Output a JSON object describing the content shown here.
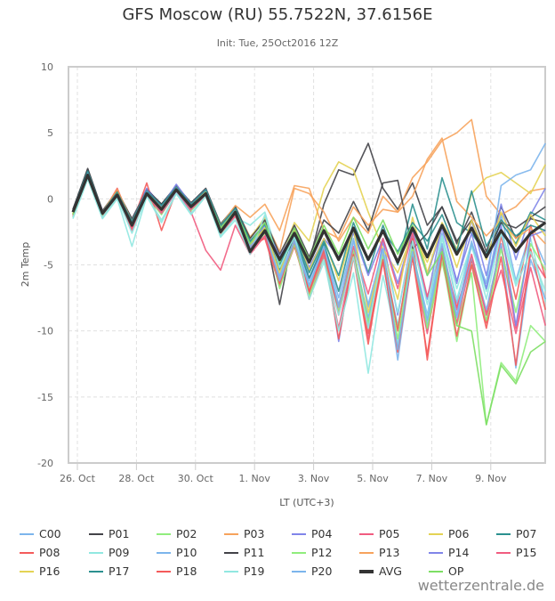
{
  "title": "GFS Moscow (RU) 55.7522N, 37.6156E",
  "subtitle": "Init: Tue, 25Oct2016 12Z",
  "credit": "wetterzentrale.de",
  "chart_data": {
    "type": "line",
    "title": "GFS Moscow (RU) 55.7522N, 37.6156E",
    "subtitle": "Init: Tue, 25Oct2016 12Z",
    "xlabel": "LT (UTC+3)",
    "ylabel": "2m Temp",
    "ylim": [
      -20,
      10
    ],
    "yticks": [
      10,
      5,
      0,
      -5,
      -10,
      -15,
      -20
    ],
    "xticks": [
      {
        "label": "26. Oct",
        "day": 0
      },
      {
        "label": "28. Oct",
        "day": 2
      },
      {
        "label": "30. Oct",
        "day": 4
      },
      {
        "label": "1. Nov",
        "day": 6
      },
      {
        "label": "3. Nov",
        "day": 8
      },
      {
        "label": "5. Nov",
        "day": 10
      },
      {
        "label": "7. Nov",
        "day": 12
      },
      {
        "label": "9. Nov",
        "day": 14
      }
    ],
    "x_units": "days since 26 Oct 00:00 LT",
    "x": [
      -0.15,
      0.35,
      0.85,
      1.35,
      1.85,
      2.35,
      2.85,
      3.35,
      3.85,
      4.35,
      4.85,
      5.35,
      5.85,
      6.35,
      6.85,
      7.35,
      7.85,
      8.35,
      8.85,
      9.35,
      9.85,
      10.35,
      10.85,
      11.35,
      11.85,
      12.35,
      12.85,
      13.35,
      13.85,
      14.35,
      14.85,
      15.35,
      15.85
    ],
    "grid": true,
    "legend_position": "bottom",
    "series": [
      {
        "name": "C00",
        "color": "#7cb5ec",
        "values": [
          -1.0,
          1.8,
          -1.2,
          0.3,
          -2.0,
          0.4,
          -0.9,
          0.8,
          -0.6,
          0.5,
          -2.4,
          -0.8,
          -3.2,
          -2.0,
          -5.8,
          -2.6,
          -6.2,
          -3.4,
          -7.5,
          -3.0,
          -8.2,
          -4.4,
          -9.6,
          -4.0,
          -8.8,
          -2.6,
          -7.9,
          -3.2,
          -6.8,
          -1.2,
          -6.2,
          -2.4,
          -5.0
        ]
      },
      {
        "name": "P01",
        "color": "#434348",
        "values": [
          -0.8,
          2.2,
          -1.0,
          0.6,
          -1.5,
          0.7,
          -0.4,
          0.9,
          -0.3,
          0.6,
          -2.0,
          -0.6,
          -3.8,
          -2.4,
          -8.0,
          -2.2,
          -4.8,
          -0.4,
          2.2,
          1.8,
          4.2,
          0.8,
          -0.8,
          1.2,
          -2.0,
          -0.6,
          -3.4,
          -1.0,
          -4.0,
          -0.6,
          -3.0,
          -1.5,
          -1.8
        ]
      },
      {
        "name": "P02",
        "color": "#90ed7d",
        "values": [
          -1.4,
          1.6,
          -1.4,
          0.1,
          -2.3,
          0.2,
          -1.2,
          0.6,
          -0.9,
          0.3,
          -2.7,
          -1.2,
          -3.9,
          -2.6,
          -6.4,
          -3.0,
          -6.8,
          -4.1,
          -8.4,
          -3.8,
          -9.2,
          -4.6,
          -9.8,
          -3.6,
          -10.0,
          -4.8,
          -9.6,
          -5.6,
          -17.1,
          -12.4,
          -13.8,
          -9.6,
          -10.8
        ]
      },
      {
        "name": "P03",
        "color": "#f7a35c",
        "values": [
          -1.1,
          1.9,
          -1.1,
          0.4,
          -1.8,
          0.5,
          -0.8,
          0.9,
          -0.5,
          0.6,
          -2.2,
          -0.7,
          -2.9,
          -1.6,
          -4.0,
          0.8,
          0.4,
          -1.0,
          -3.2,
          -1.4,
          -2.6,
          0.2,
          -1.0,
          1.6,
          2.8,
          4.4,
          5.0,
          6.0,
          0.2,
          -1.2,
          -0.6,
          0.6,
          0.8
        ]
      },
      {
        "name": "P04",
        "color": "#8085e9",
        "values": [
          -0.9,
          2.1,
          -0.9,
          0.5,
          -1.6,
          0.8,
          -0.5,
          1.0,
          -0.4,
          0.7,
          -2.1,
          -0.9,
          -3.4,
          -1.8,
          -5.0,
          -2.8,
          -6.0,
          -3.6,
          -10.8,
          -4.0,
          -9.6,
          -3.2,
          -8.8,
          -2.8,
          -7.6,
          -2.0,
          -6.4,
          -1.6,
          -5.8,
          -0.4,
          -4.6,
          -1.2,
          0.8
        ]
      },
      {
        "name": "P05",
        "color": "#f15c80",
        "values": [
          -1.2,
          1.7,
          -1.3,
          0.2,
          -2.4,
          0.3,
          -1.1,
          0.5,
          -1.0,
          -3.9,
          -5.4,
          -2.0,
          -4.2,
          -2.8,
          -6.2,
          -3.4,
          -7.6,
          -4.4,
          -9.8,
          -4.2,
          -10.6,
          -4.8,
          -11.2,
          -4.4,
          -10.2,
          -3.8,
          -9.4,
          -4.6,
          -8.6,
          -3.4,
          -9.8,
          -4.2,
          -6.0
        ]
      },
      {
        "name": "P06",
        "color": "#e4d354",
        "values": [
          -1.3,
          1.8,
          -1.2,
          0.3,
          -2.0,
          0.4,
          -0.7,
          0.7,
          -0.6,
          0.5,
          -2.3,
          -1.0,
          -3.0,
          -1.4,
          -4.6,
          -1.8,
          -3.2,
          0.8,
          2.8,
          2.2,
          -1.0,
          -3.8,
          -5.6,
          -2.6,
          -4.8,
          -1.8,
          -3.8,
          0.4,
          1.6,
          2.0,
          1.2,
          0.4,
          2.6
        ]
      },
      {
        "name": "P07",
        "color": "#2b908f",
        "values": [
          -0.9,
          2.0,
          -1.0,
          0.5,
          -1.7,
          0.6,
          -0.6,
          0.8,
          -0.5,
          0.6,
          -2.1,
          -0.8,
          -3.3,
          -2.2,
          -5.4,
          -2.8,
          -6.0,
          -3.4,
          -7.0,
          -2.4,
          -5.6,
          -2.0,
          -5.0,
          -0.4,
          -3.8,
          1.6,
          -1.8,
          -2.6,
          -4.2,
          -1.8,
          -3.4,
          -1.0,
          -1.6
        ]
      },
      {
        "name": "P08",
        "color": "#f45b5b",
        "values": [
          -1.0,
          1.9,
          -1.1,
          0.8,
          -1.9,
          1.2,
          -2.4,
          0.6,
          -0.7,
          0.4,
          -2.6,
          -1.2,
          -3.6,
          -3.0,
          -6.6,
          -3.6,
          -7.2,
          -4.0,
          -10.6,
          -4.4,
          -11.0,
          -4.0,
          -10.0,
          -3.0,
          -12.2,
          -4.2,
          -8.2,
          -4.6,
          -9.4,
          -2.8,
          -7.6,
          -2.0,
          -6.0
        ]
      },
      {
        "name": "P09",
        "color": "#91e8e1",
        "values": [
          -1.5,
          1.5,
          -1.5,
          0.0,
          -3.6,
          0.2,
          -1.6,
          0.4,
          -1.2,
          0.2,
          -2.8,
          -1.4,
          -2.0,
          -1.0,
          -4.8,
          -2.8,
          -6.6,
          -4.6,
          -10.0,
          -5.6,
          -13.2,
          -5.8,
          -11.0,
          -4.4,
          -9.0,
          -3.0,
          -7.6,
          -3.6,
          -7.0,
          -2.2,
          -6.4,
          -3.0,
          -7.8
        ]
      },
      {
        "name": "P10",
        "color": "#7cb5ec",
        "values": [
          -1.2,
          1.7,
          -1.2,
          0.2,
          -2.1,
          0.3,
          -1.0,
          0.5,
          -0.8,
          0.3,
          -2.5,
          -1.1,
          -3.8,
          -2.5,
          -6.0,
          -3.1,
          -6.5,
          -3.8,
          -8.0,
          -4.0,
          -9.0,
          -4.3,
          -12.2,
          -4.2,
          -9.6,
          -3.8,
          -9.0,
          -4.4,
          -8.4,
          -3.4,
          -12.8,
          -4.6,
          -7.6
        ]
      },
      {
        "name": "P11",
        "color": "#434348",
        "values": [
          -0.8,
          2.3,
          -0.9,
          0.6,
          -1.6,
          0.7,
          -0.4,
          1.0,
          -0.3,
          0.8,
          -1.9,
          -0.6,
          -3.0,
          -1.6,
          -4.2,
          -2.0,
          -4.4,
          -1.6,
          -2.6,
          -0.2,
          -2.4,
          1.2,
          1.4,
          -3.8,
          -2.6,
          -0.6,
          -3.2,
          -1.6,
          -4.4,
          -1.8,
          -2.2,
          -1.4,
          -0.6
        ]
      },
      {
        "name": "P12",
        "color": "#90ed7d",
        "values": [
          -1.1,
          1.8,
          -1.2,
          0.3,
          -2.0,
          0.4,
          -0.8,
          0.8,
          -0.5,
          0.5,
          -2.3,
          -0.9,
          -3.6,
          -2.2,
          -6.8,
          -3.4,
          -7.4,
          -4.2,
          -8.6,
          -4.0,
          -9.4,
          -4.4,
          -10.6,
          -3.8,
          -9.8,
          -4.4,
          -10.8,
          -5.0,
          -9.2,
          -3.8,
          -8.6,
          -3.4,
          -5.4
        ]
      },
      {
        "name": "P13",
        "color": "#f7a35c",
        "values": [
          -1.0,
          2.0,
          -1.0,
          0.7,
          -1.7,
          0.6,
          -0.6,
          0.9,
          -0.4,
          0.6,
          -2.0,
          -0.5,
          -1.4,
          -0.4,
          -2.4,
          1.0,
          0.8,
          -2.4,
          -3.0,
          -0.6,
          -2.0,
          -0.8,
          -1.0,
          0.2,
          3.0,
          4.6,
          -0.2,
          -1.4,
          -2.8,
          -1.6,
          -3.0,
          -2.2,
          -3.4
        ]
      },
      {
        "name": "P14",
        "color": "#8085e9",
        "values": [
          -0.9,
          2.0,
          -1.0,
          0.4,
          -1.8,
          0.7,
          -0.6,
          1.1,
          -0.4,
          0.7,
          -2.2,
          -0.8,
          -3.4,
          -2.0,
          -4.4,
          -2.4,
          -5.2,
          -3.0,
          -4.4,
          -2.6,
          -5.8,
          -3.0,
          -6.4,
          -2.4,
          -5.8,
          -2.2,
          -6.2,
          -2.6,
          -6.8,
          -2.0,
          -9.6,
          -2.8,
          -2.4
        ]
      },
      {
        "name": "P15",
        "color": "#f15c80",
        "values": [
          -1.3,
          1.7,
          -1.3,
          0.2,
          -2.2,
          0.3,
          -1.0,
          0.6,
          -0.8,
          0.3,
          -2.6,
          -1.3,
          -3.9,
          -2.8,
          -6.4,
          -3.2,
          -7.0,
          -4.2,
          -8.2,
          -3.6,
          -7.2,
          -3.0,
          -6.8,
          -2.6,
          -7.4,
          -3.6,
          -8.4,
          -4.2,
          -8.8,
          -5.4,
          -10.2,
          -5.2,
          -9.6
        ]
      },
      {
        "name": "P16",
        "color": "#e4d354",
        "values": [
          -1.1,
          1.9,
          -1.1,
          0.4,
          -1.9,
          0.5,
          -0.7,
          0.8,
          -0.5,
          0.5,
          -2.3,
          -1.0,
          -3.5,
          -2.2,
          -5.6,
          -2.4,
          -5.4,
          -3.0,
          -6.2,
          -2.2,
          -8.6,
          -4.0,
          -7.6,
          -1.4,
          -5.6,
          -2.0,
          -5.2,
          -1.6,
          -4.6,
          -1.0,
          -3.6,
          -1.2,
          -2.8
        ]
      },
      {
        "name": "P17",
        "color": "#2b908f",
        "values": [
          -0.9,
          2.1,
          -1.0,
          0.5,
          -1.7,
          0.6,
          -0.5,
          0.9,
          -0.4,
          0.7,
          -2.0,
          -0.7,
          -3.2,
          -1.9,
          -5.0,
          -2.6,
          -5.6,
          -3.2,
          -5.8,
          -1.8,
          -4.6,
          -2.4,
          -4.0,
          -1.8,
          -3.2,
          -1.2,
          -4.0,
          0.6,
          -3.6,
          -1.6,
          -2.8,
          -2.0,
          -2.4
        ]
      },
      {
        "name": "P18",
        "color": "#f45b5b",
        "values": [
          -1.2,
          1.8,
          -1.2,
          0.3,
          -2.1,
          0.4,
          -0.9,
          0.7,
          -0.6,
          0.4,
          -2.5,
          -1.1,
          -3.6,
          -2.5,
          -6.4,
          -3.2,
          -7.0,
          -3.8,
          -8.8,
          -4.2,
          -10.2,
          -4.6,
          -11.6,
          -4.4,
          -11.8,
          -4.2,
          -10.4,
          -5.0,
          -9.8,
          -4.4,
          -12.6,
          -3.8,
          -8.4
        ]
      },
      {
        "name": "P19",
        "color": "#91e8e1",
        "values": [
          -1.4,
          1.6,
          -1.4,
          0.1,
          -2.6,
          0.2,
          -1.8,
          0.4,
          -1.1,
          0.2,
          -2.9,
          -1.6,
          -4.2,
          -1.2,
          -5.2,
          -2.8,
          -7.6,
          -4.8,
          -8.8,
          -4.4,
          -9.8,
          -3.8,
          -8.6,
          -3.2,
          -8.0,
          -2.8,
          -6.8,
          -3.4,
          -7.6,
          -2.6,
          -6.6,
          -4.0,
          -7.0
        ]
      },
      {
        "name": "P20",
        "color": "#7cb5ec",
        "values": [
          -1.0,
          1.9,
          -1.1,
          0.4,
          -2.0,
          0.5,
          -0.8,
          0.8,
          -0.6,
          0.5,
          -2.4,
          -1.0,
          -3.6,
          -2.4,
          -6.2,
          -3.2,
          -6.6,
          -3.6,
          -8.2,
          -3.2,
          -8.0,
          -3.8,
          -11.4,
          -4.0,
          -9.2,
          -3.4,
          -8.8,
          -3.4,
          -6.4,
          1.0,
          1.8,
          2.2,
          4.2
        ]
      },
      {
        "name": "AVG",
        "color": "#333333",
        "thick": true,
        "values": [
          -1.0,
          1.8,
          -1.1,
          0.3,
          -2.0,
          0.4,
          -0.8,
          0.7,
          -0.6,
          0.4,
          -2.5,
          -1.0,
          -4.0,
          -2.4,
          -4.6,
          -2.6,
          -4.8,
          -2.4,
          -4.6,
          -2.2,
          -4.6,
          -2.4,
          -4.8,
          -2.2,
          -4.4,
          -2.0,
          -4.2,
          -2.2,
          -4.4,
          -2.4,
          -4.0,
          -2.6,
          -1.8
        ]
      },
      {
        "name": "OP",
        "color": "#7ddf64",
        "values": [
          -1.2,
          1.8,
          -1.2,
          0.4,
          -2.0,
          0.4,
          -0.7,
          0.7,
          -0.6,
          0.5,
          -2.2,
          -0.9,
          -3.4,
          -1.8,
          -4.8,
          -2.2,
          -4.6,
          -2.0,
          -4.2,
          -1.4,
          -3.8,
          -1.6,
          -4.2,
          -2.0,
          -5.8,
          -4.0,
          -9.6,
          -10.0,
          -17.1,
          -12.6,
          -14.0,
          -11.6,
          -10.8
        ]
      }
    ]
  }
}
